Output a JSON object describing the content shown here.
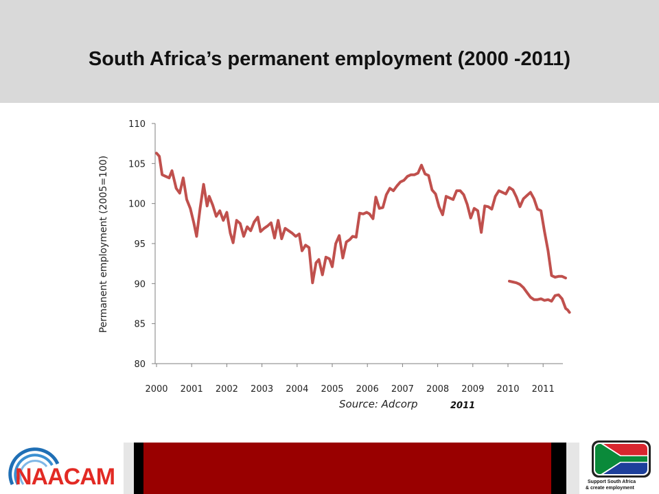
{
  "header": {
    "title": "South Africa’s permanent employment (2000 -2011)"
  },
  "chart_data": {
    "type": "line",
    "title": "South Africa’s permanent employment (2000 -2011)",
    "xlabel": "",
    "ylabel": "Permanent employment (2005=100)",
    "ylim": [
      80,
      110
    ],
    "xlim": [
      2000,
      2011.75
    ],
    "yticks": [
      80,
      85,
      90,
      95,
      100,
      105,
      110
    ],
    "xticks": [
      "2000",
      "2001",
      "2002",
      "2003",
      "2004",
      "2005",
      "2006",
      "2007",
      "2008",
      "2009",
      "2010",
      "2011"
    ],
    "grid": false,
    "color": "#c0504d",
    "series": [
      {
        "x": [
          2000.0,
          2000.08,
          2000.16,
          2000.26,
          2000.36,
          2000.44,
          2000.56,
          2000.66,
          2000.76,
          2000.86,
          2000.96,
          2001.06,
          2001.14,
          2001.24,
          2001.34,
          2001.44,
          2001.5,
          2001.6,
          2001.7,
          2001.8,
          2001.9,
          2002.0,
          2002.1,
          2002.18,
          2002.28,
          2002.38,
          2002.48,
          2002.58,
          2002.68,
          2002.78,
          2002.88,
          2002.96,
          2003.06,
          2003.16,
          2003.26,
          2003.36,
          2003.46,
          2003.56,
          2003.66,
          2003.76,
          2003.86,
          2003.96,
          2004.06,
          2004.14,
          2004.24,
          2004.34,
          2004.44,
          2004.54,
          2004.62,
          2004.72,
          2004.82,
          2004.92,
          2005.0,
          2005.1,
          2005.2,
          2005.3,
          2005.4,
          2005.5,
          2005.58,
          2005.68,
          2005.78,
          2005.88,
          2005.98,
          2006.06,
          2006.16,
          2006.24,
          2006.34,
          2006.44,
          2006.54,
          2006.64,
          2006.74,
          2006.84,
          2006.94,
          2007.04,
          2007.14,
          2007.24,
          2007.34,
          2007.44,
          2007.54,
          2007.64,
          2007.74,
          2007.84,
          2007.94,
          2008.04,
          2008.14,
          2008.24,
          2008.34,
          2008.44,
          2008.54,
          2008.64,
          2008.74,
          2008.84,
          2008.94,
          2009.04,
          2009.14,
          2009.24,
          2009.34,
          2009.44,
          2009.54,
          2009.64,
          2009.74,
          2009.84,
          2009.94,
          2010.04,
          2010.14,
          2010.24,
          2010.34,
          2010.44,
          2010.54,
          2010.64,
          2010.74,
          2010.84,
          2010.94,
          2011.04,
          2011.14,
          2011.24,
          2011.34,
          2011.44,
          2011.54,
          2011.64
        ],
        "y": [
          106.3,
          105.9,
          103.6,
          103.4,
          103.2,
          104.1,
          101.9,
          101.3,
          103.2,
          100.5,
          99.4,
          97.6,
          95.9,
          99.4,
          102.4,
          99.7,
          100.9,
          99.8,
          98.4,
          99.1,
          97.9,
          98.9,
          96.3,
          95.1,
          97.9,
          97.5,
          95.9,
          97.1,
          96.6,
          97.7,
          98.3,
          96.5,
          96.9,
          97.2,
          97.6,
          95.7,
          97.9,
          95.6,
          96.9,
          96.6,
          96.3,
          95.9,
          96.2,
          94.1,
          94.8,
          94.5,
          90.1,
          92.6,
          93.0,
          91.1,
          93.3,
          93.1,
          92.1,
          95.0,
          96.0,
          93.2,
          95.2,
          95.5,
          95.9,
          95.8,
          98.8,
          98.7,
          98.9,
          98.7,
          98.1,
          100.8,
          99.4,
          99.5,
          101.1,
          101.9,
          101.6,
          102.2,
          102.7,
          102.9,
          103.4,
          103.6,
          103.6,
          103.8,
          104.8,
          103.7,
          103.5,
          101.7,
          101.2,
          99.6,
          98.6,
          100.9,
          100.7,
          100.5,
          101.6,
          101.6,
          101.1,
          99.9,
          98.2,
          99.4,
          99.1,
          96.4,
          99.7,
          99.6,
          99.3,
          100.9,
          101.6,
          101.4,
          101.2,
          102.0,
          101.7,
          100.8,
          99.6,
          100.6,
          101.0,
          101.4,
          100.6,
          99.3,
          99.1,
          96.5,
          94.1,
          91.0,
          90.8,
          90.9,
          90.9,
          90.7
        ]
      },
      {
        "x": [
          2010.04,
          2010.14,
          2010.24,
          2010.34,
          2010.44,
          2010.54,
          2010.64,
          2010.74,
          2010.84,
          2010.94,
          2011.04,
          2011.14,
          2011.24,
          2011.34,
          2011.44,
          2011.54,
          2011.64,
          2011.7,
          2011.75
        ],
        "y": [
          90.3,
          90.2,
          90.1,
          89.9,
          89.5,
          88.9,
          88.3,
          88.0,
          88.0,
          88.1,
          87.9,
          88.0,
          87.8,
          88.5,
          88.6,
          88.1,
          86.9,
          86.7,
          86.4
        ]
      }
    ]
  },
  "footer": {
    "source_label": "Source: Adcorp",
    "source_year": "2011",
    "logo_left_text": "NAACAM",
    "logo_right_line1": "Support South Africa",
    "logo_right_line2": "& create employment"
  }
}
